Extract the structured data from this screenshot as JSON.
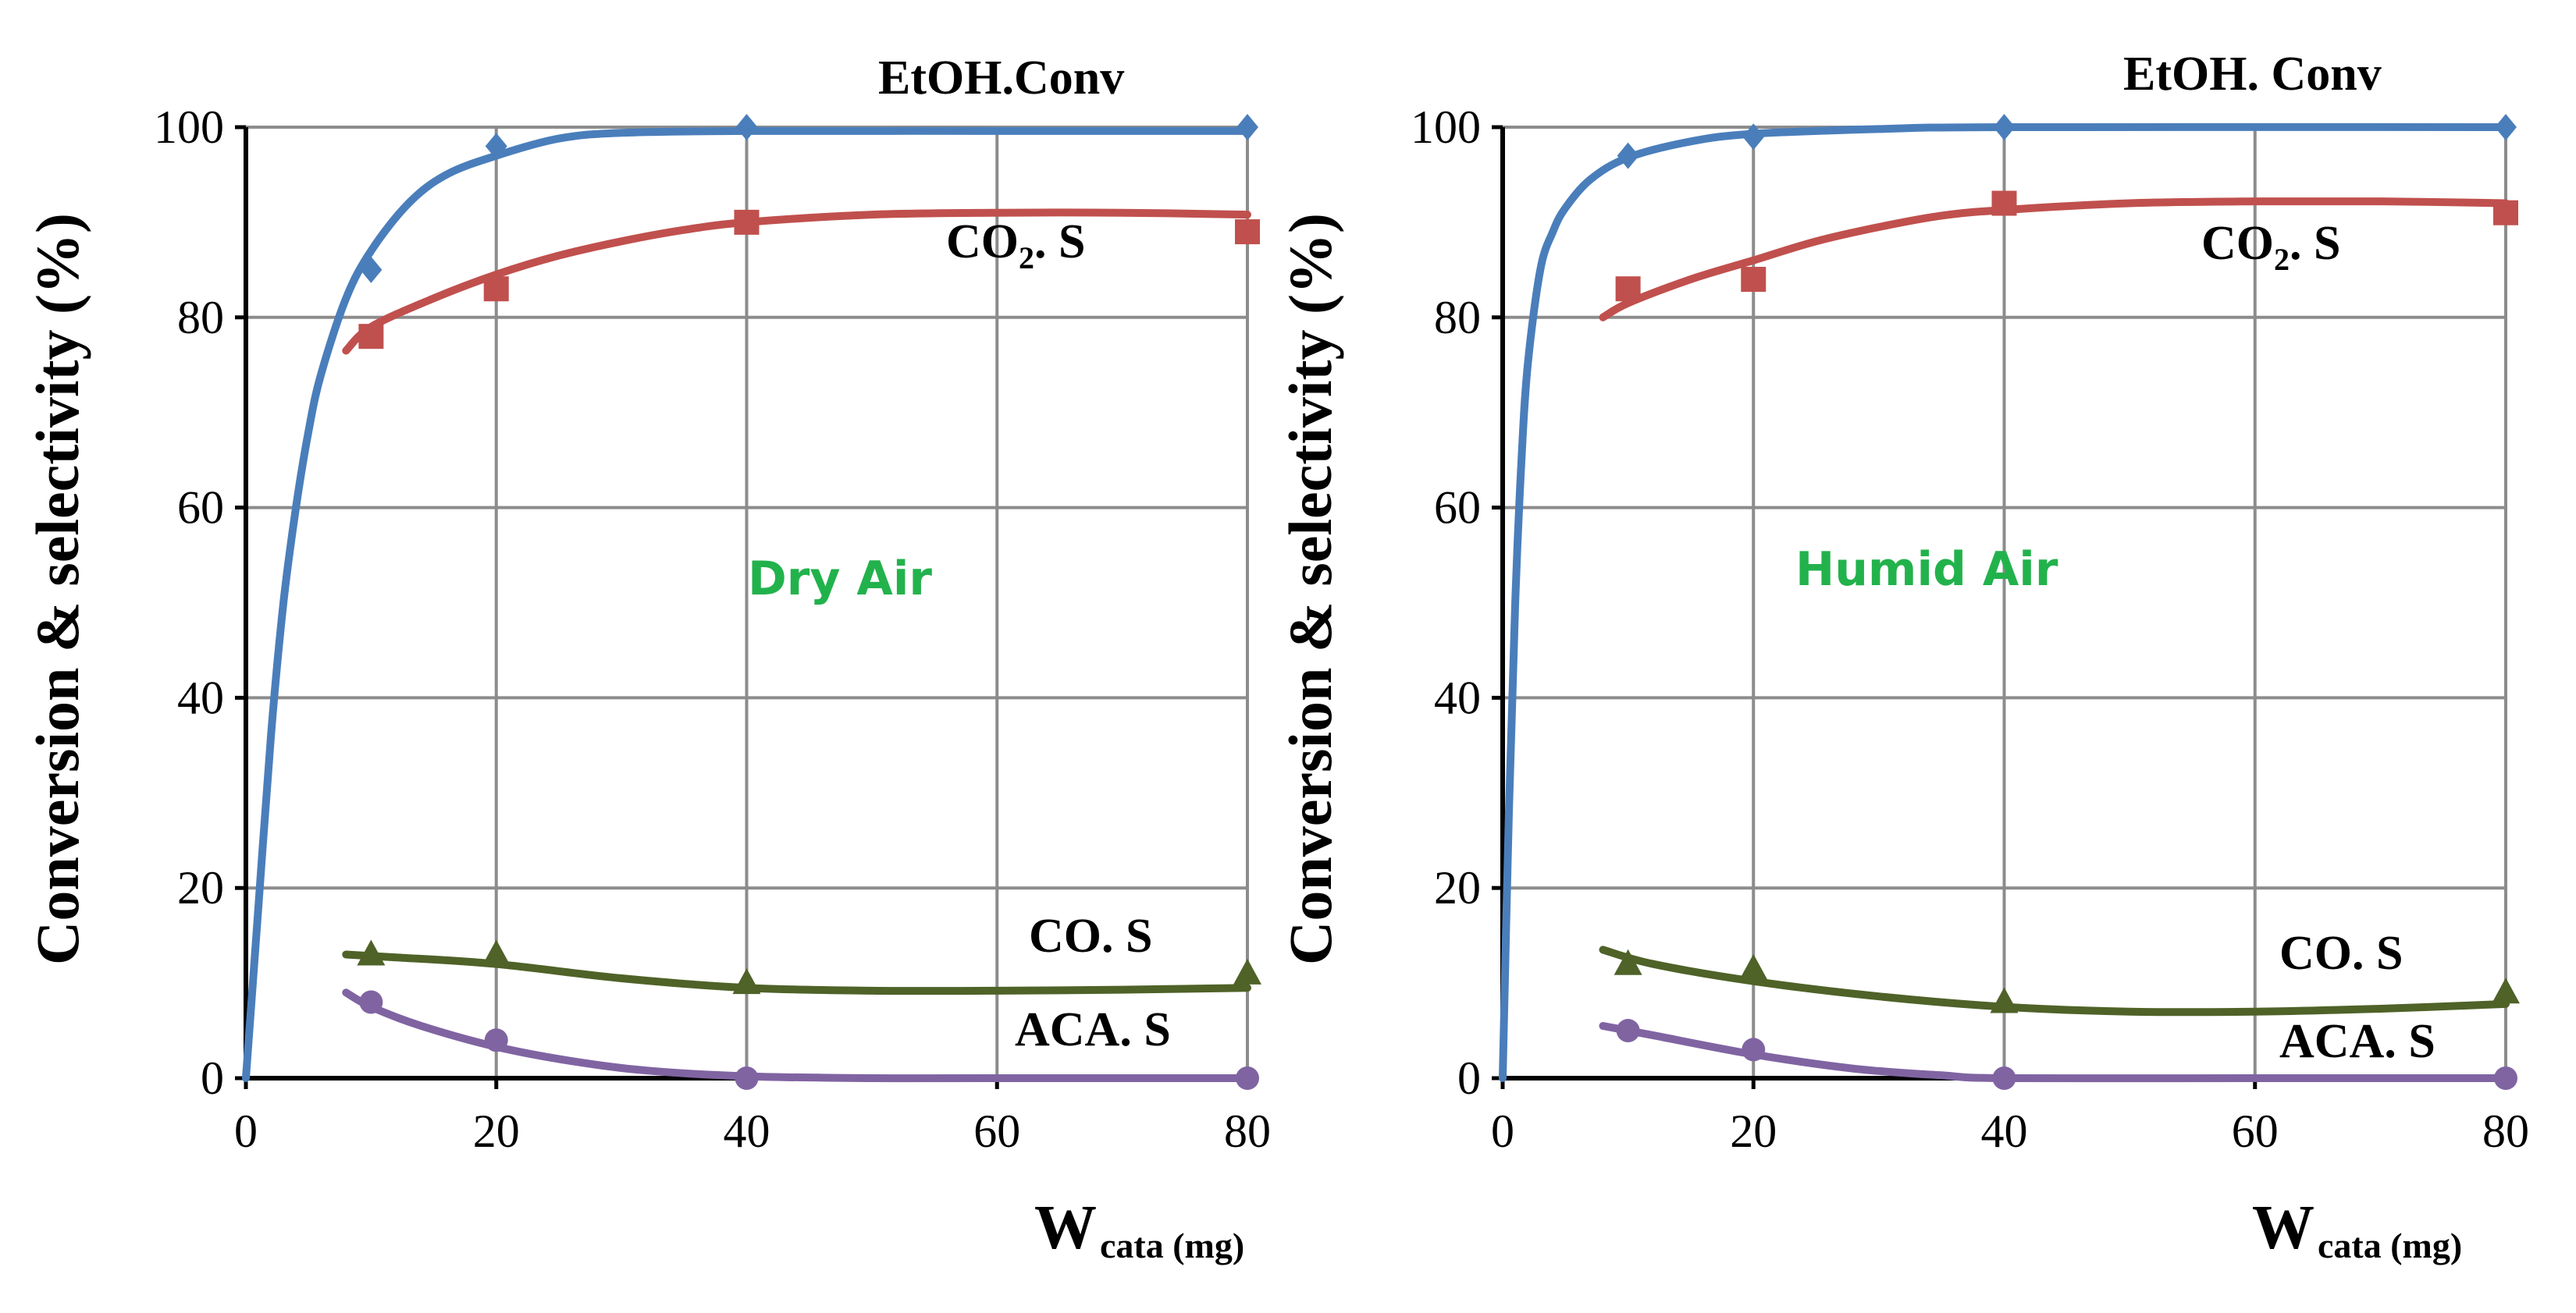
{
  "chart_data": [
    {
      "type": "scatter",
      "condition": "Dry Air",
      "ylabel": "Conversion & selectivity (%)",
      "xlabel_main": "W",
      "xlabel_sub": "cata (mg)",
      "xlim": [
        0,
        80
      ],
      "ylim": [
        0,
        100
      ],
      "xticks": [
        "0",
        "20",
        "40",
        "60",
        "80"
      ],
      "yticks": [
        "0",
        "20",
        "40",
        "60",
        "80",
        "100"
      ],
      "grid": true,
      "x": [
        10,
        20,
        40,
        80
      ],
      "series": [
        {
          "key": "etoh",
          "name": "EtOH.Conv",
          "label_main": "EtOH.Conv",
          "label_sub": "",
          "label_tail": "",
          "color": "#4a7ebb",
          "marker": "diamond",
          "values": [
            85,
            98,
            100,
            100
          ],
          "fit": [
            [
              0,
              0
            ],
            [
              1,
              18
            ],
            [
              2,
              36
            ],
            [
              3,
              50
            ],
            [
              4,
              60
            ],
            [
              5,
              68
            ],
            [
              6,
              74
            ],
            [
              8,
              82
            ],
            [
              10,
              87
            ],
            [
              13,
              92
            ],
            [
              16,
              95
            ],
            [
              20,
              97
            ],
            [
              25,
              98.8
            ],
            [
              30,
              99.4
            ],
            [
              40,
              99.6
            ],
            [
              60,
              99.6
            ],
            [
              80,
              99.6
            ]
          ]
        },
        {
          "key": "co2",
          "name": "CO2. S",
          "label_main": "CO",
          "label_sub": "2",
          "label_tail": ". S",
          "color": "#c0504d",
          "marker": "square",
          "values": [
            78,
            83,
            90,
            89
          ],
          "fit": [
            [
              8,
              76.5
            ],
            [
              10,
              79
            ],
            [
              15,
              82
            ],
            [
              20,
              84.5
            ],
            [
              25,
              86.5
            ],
            [
              30,
              88
            ],
            [
              35,
              89.2
            ],
            [
              40,
              90
            ],
            [
              50,
              90.8
            ],
            [
              60,
              91
            ],
            [
              70,
              91
            ],
            [
              80,
              90.8
            ]
          ]
        },
        {
          "key": "co",
          "name": "CO. S",
          "label_main": "CO. S",
          "label_sub": "",
          "label_tail": "",
          "color": "#4f6228",
          "marker": "triangle",
          "values": [
            13,
            13,
            10,
            11
          ],
          "fit": [
            [
              8,
              13
            ],
            [
              12,
              12.7
            ],
            [
              20,
              12
            ],
            [
              30,
              10.5
            ],
            [
              40,
              9.5
            ],
            [
              50,
              9.2
            ],
            [
              60,
              9.2
            ],
            [
              70,
              9.3
            ],
            [
              80,
              9.5
            ]
          ]
        },
        {
          "key": "aca",
          "name": "ACA. S",
          "label_main": "ACA. S",
          "label_sub": "",
          "label_tail": "",
          "color": "#8064a2",
          "marker": "circle",
          "values": [
            8,
            4,
            0,
            0
          ],
          "fit": [
            [
              8,
              9
            ],
            [
              10,
              7.5
            ],
            [
              14,
              5.5
            ],
            [
              20,
              3.3
            ],
            [
              26,
              1.8
            ],
            [
              32,
              0.8
            ],
            [
              40,
              0.2
            ],
            [
              50,
              0
            ],
            [
              60,
              0
            ],
            [
              80,
              0
            ]
          ]
        }
      ]
    },
    {
      "type": "scatter",
      "condition": "Humid Air",
      "ylabel": "Conversion & selectivity (%)",
      "xlabel_main": "W",
      "xlabel_sub": "cata (mg)",
      "xlim": [
        0,
        80
      ],
      "ylim": [
        0,
        100
      ],
      "xticks": [
        "0",
        "20",
        "40",
        "60",
        "80"
      ],
      "yticks": [
        "0",
        "20",
        "40",
        "60",
        "80",
        "100"
      ],
      "grid": true,
      "x": [
        10,
        20,
        40,
        80
      ],
      "series": [
        {
          "key": "etoh",
          "name": "EtOH. Conv",
          "label_main": "EtOH. Conv",
          "label_sub": "",
          "label_tail": "",
          "color": "#4a7ebb",
          "marker": "diamond",
          "values": [
            97,
            99,
            100,
            100
          ],
          "fit": [
            [
              0,
              0
            ],
            [
              0.5,
              28
            ],
            [
              1,
              50
            ],
            [
              1.5,
              65
            ],
            [
              2,
              75
            ],
            [
              3,
              85
            ],
            [
              4,
              89
            ],
            [
              5,
              91.5
            ],
            [
              7,
              94.5
            ],
            [
              10,
              96.8
            ],
            [
              15,
              98.5
            ],
            [
              20,
              99.3
            ],
            [
              30,
              99.8
            ],
            [
              40,
              100
            ],
            [
              80,
              100
            ]
          ]
        },
        {
          "key": "co2",
          "name": "CO2. S",
          "label_main": "CO",
          "label_sub": "2",
          "label_tail": ". S",
          "color": "#c0504d",
          "marker": "square",
          "values": [
            83,
            84,
            92,
            91
          ],
          "fit": [
            [
              8,
              80
            ],
            [
              10,
              81.5
            ],
            [
              15,
              84
            ],
            [
              20,
              86
            ],
            [
              25,
              88
            ],
            [
              30,
              89.5
            ],
            [
              35,
              90.7
            ],
            [
              40,
              91.3
            ],
            [
              50,
              92
            ],
            [
              60,
              92.2
            ],
            [
              70,
              92.2
            ],
            [
              80,
              92
            ]
          ]
        },
        {
          "key": "co",
          "name": "CO. S",
          "label_main": "CO. S",
          "label_sub": "",
          "label_tail": "",
          "color": "#4f6228",
          "marker": "triangle",
          "values": [
            12,
            11.5,
            8,
            9
          ],
          "fit": [
            [
              8,
              13.5
            ],
            [
              12,
              12
            ],
            [
              20,
              10.2
            ],
            [
              30,
              8.6
            ],
            [
              40,
              7.5
            ],
            [
              50,
              7
            ],
            [
              60,
              7
            ],
            [
              70,
              7.3
            ],
            [
              80,
              7.8
            ]
          ]
        },
        {
          "key": "aca",
          "name": "ACA. S",
          "label_main": "ACA. S",
          "label_sub": "",
          "label_tail": "",
          "color": "#8064a2",
          "marker": "circle",
          "values": [
            5,
            3,
            0,
            0
          ],
          "fit": [
            [
              8,
              5.5
            ],
            [
              12,
              4.5
            ],
            [
              20,
              2.5
            ],
            [
              28,
              1
            ],
            [
              35,
              0.3
            ],
            [
              40,
              0
            ],
            [
              60,
              0
            ],
            [
              80,
              0
            ]
          ]
        }
      ]
    }
  ]
}
